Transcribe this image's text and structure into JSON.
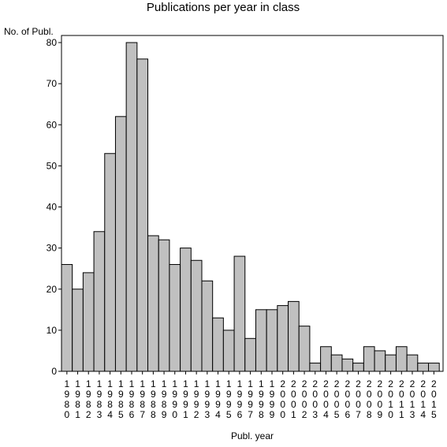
{
  "chart_data": {
    "type": "bar",
    "title": "Publications per year in class",
    "ylabel": "No. of Publ.",
    "xlabel": "Publ. year",
    "ylim": [
      0,
      80
    ],
    "yticks": [
      0,
      10,
      20,
      30,
      40,
      50,
      60,
      70,
      80
    ],
    "categories": [
      "1980",
      "1981",
      "1982",
      "1983",
      "1984",
      "1985",
      "1986",
      "1987",
      "1988",
      "1989",
      "1990",
      "1991",
      "1992",
      "1993",
      "1994",
      "1995",
      "1996",
      "1997",
      "1998",
      "1999",
      "2000",
      "2001",
      "2002",
      "2003",
      "2004",
      "2005",
      "2006",
      "2007",
      "2008",
      "2009",
      "2010",
      "2011",
      "2013",
      "2014",
      "2015"
    ],
    "values": [
      26,
      20,
      24,
      34,
      53,
      62,
      80,
      76,
      33,
      32,
      26,
      30,
      27,
      22,
      13,
      10,
      28,
      8,
      15,
      15,
      16,
      17,
      11,
      2,
      6,
      4,
      3,
      2,
      6,
      5,
      4,
      6,
      4,
      2,
      2
    ],
    "bar_color": "#c0c0c0",
    "grid": false
  }
}
